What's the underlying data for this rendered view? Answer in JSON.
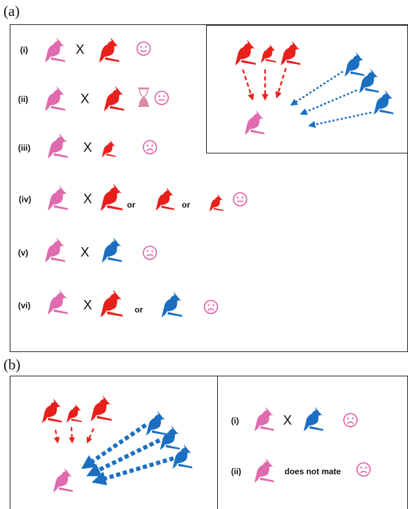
{
  "panel_a": {
    "letter": "(a)",
    "rows": [
      {
        "label": "(i)",
        "cross": "X",
        "or": []
      },
      {
        "label": "(ii)",
        "cross": "X",
        "or": []
      },
      {
        "label": "(iii)",
        "cross": "X",
        "or": []
      },
      {
        "label": "(iv)",
        "cross": "X",
        "or": [
          "or",
          "or"
        ]
      },
      {
        "label": "(v)",
        "cross": "X",
        "or": []
      },
      {
        "label": "(vi)",
        "cross": "X",
        "or": [
          "or"
        ]
      }
    ]
  },
  "panel_b": {
    "letter": "(b)",
    "rows": [
      {
        "label": "(i)",
        "cross": "X"
      },
      {
        "label": "(ii)",
        "note": "does not mate"
      }
    ]
  },
  "colors": {
    "female_pink": "#e06aae",
    "red_male": "#e8201b",
    "blue_male": "#1b6fc0",
    "face_pink": "#e0559a",
    "hourglass": "#d98aa0"
  },
  "icons": {
    "bird": "cardinal-bird-icon",
    "happy": "smiley-face-icon",
    "neutral": "neutral-face-icon",
    "sad": "sad-face-icon",
    "timer": "hourglass-icon"
  }
}
